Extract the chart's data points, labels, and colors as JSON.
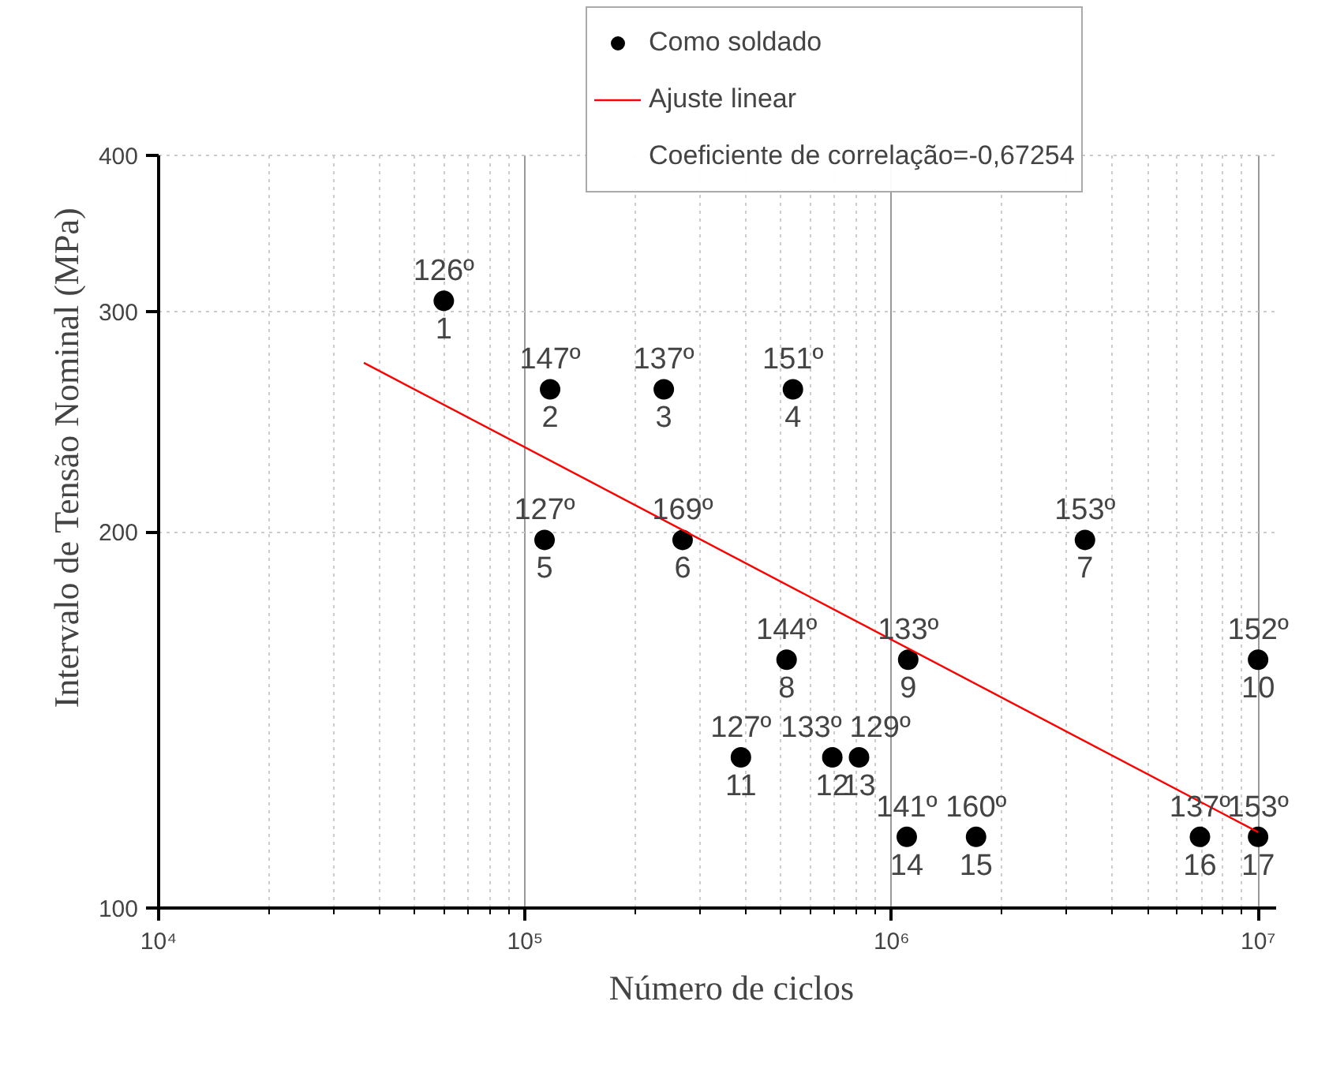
{
  "chart_data": {
    "type": "scatter",
    "xlabel": "Número de ciclos",
    "ylabel": "Intervalo de Tensão Nominal (MPa)",
    "log": "xy",
    "grid": true,
    "legend": "top right",
    "marker": "circle",
    "xlim": [
      10000,
      11200000
    ],
    "xticks": [
      {
        "value": 10000,
        "label": "10⁴"
      },
      {
        "value": 100000,
        "label": "10⁵"
      },
      {
        "value": 1000000,
        "label": "10⁶"
      },
      {
        "value": 10000000,
        "label": "10⁷"
      }
    ],
    "ylim": [
      100,
      400
    ],
    "yticks": [
      100,
      200,
      300,
      400
    ],
    "series": [
      {
        "name": "Como soldado",
        "color": "#000000",
        "x": [
          60000,
          117000,
          239000,
          538000,
          113000,
          269000,
          3370000,
          517000,
          1110000,
          10000000,
          388000,
          689000,
          815000,
          1100000,
          1700000,
          6940000,
          10000000
        ],
        "values": [
          306,
          260,
          260,
          260,
          197,
          197,
          197,
          158,
          158,
          158,
          132,
          132,
          132,
          114,
          114,
          114,
          114
        ]
      },
      {
        "name": "Ajuste linear",
        "type": "line",
        "color": "#ff0000",
        "marker": "none",
        "x": [
          36300,
          10000000
        ],
        "values": [
          273,
          115
        ]
      }
    ],
    "annotations": [
      {
        "text": "126º",
        "x": 60000,
        "y": 306
      },
      {
        "text": "1",
        "x": 60000,
        "y": 306
      },
      {
        "text": "147º",
        "x": 117000,
        "y": 260
      },
      {
        "text": "2",
        "x": 117000,
        "y": 260
      },
      {
        "text": "137º",
        "x": 239000,
        "y": 260
      },
      {
        "text": "3",
        "x": 239000,
        "y": 260
      },
      {
        "text": "151º",
        "x": 538000,
        "y": 260
      },
      {
        "text": "4",
        "x": 538000,
        "y": 260
      },
      {
        "text": "127º",
        "x": 113000,
        "y": 197
      },
      {
        "text": "5",
        "x": 113000,
        "y": 197
      },
      {
        "text": "169º",
        "x": 269000,
        "y": 197
      },
      {
        "text": "6",
        "x": 269000,
        "y": 197
      },
      {
        "text": "153º",
        "x": 3370000,
        "y": 197
      },
      {
        "text": "7",
        "x": 3370000,
        "y": 197
      },
      {
        "text": "144º",
        "x": 517000,
        "y": 158
      },
      {
        "text": "8",
        "x": 517000,
        "y": 158
      },
      {
        "text": "133º",
        "x": 1110000,
        "y": 158
      },
      {
        "text": "9",
        "x": 1110000,
        "y": 158
      },
      {
        "text": "152º",
        "x": 10000000,
        "y": 158
      },
      {
        "text": "10",
        "x": 10000000,
        "y": 158
      },
      {
        "text": "127º",
        "x": 388000,
        "y": 132
      },
      {
        "text": "11",
        "x": 388000,
        "y": 132
      },
      {
        "text": "133º",
        "x": 689000,
        "y": 132
      },
      {
        "text": "12",
        "x": 689000,
        "y": 132
      },
      {
        "text": "129º",
        "x": 815000,
        "y": 132
      },
      {
        "text": "13",
        "x": 815000,
        "y": 132
      },
      {
        "text": "141º",
        "x": 1100000,
        "y": 114
      },
      {
        "text": "14",
        "x": 1100000,
        "y": 114
      },
      {
        "text": "160º",
        "x": 1700000,
        "y": 114
      },
      {
        "text": "15",
        "x": 1700000,
        "y": 114
      },
      {
        "text": "137º",
        "x": 6940000,
        "y": 114
      },
      {
        "text": "16",
        "x": 6940000,
        "y": 114
      },
      {
        "text": "153º",
        "x": 10000000,
        "y": 114
      },
      {
        "text": "17",
        "x": 10000000,
        "y": 114
      },
      "Coeficiente de correlação=-0,67254"
    ]
  }
}
